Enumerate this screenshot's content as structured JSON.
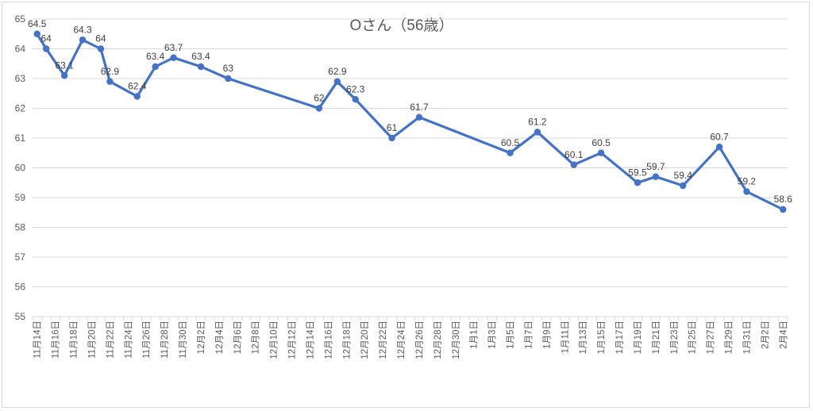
{
  "chart_data": {
    "type": "line",
    "title": "Oさん（56歳）",
    "xlabel": "",
    "ylabel": "",
    "ylim": [
      55,
      65
    ],
    "y_ticks": [
      55,
      56,
      57,
      58,
      59,
      60,
      61,
      62,
      63,
      64,
      65
    ],
    "grid": true,
    "legend": "none",
    "line_color": "#4472c4",
    "x_tick_labels": [
      "11月14日",
      "11月16日",
      "11月18日",
      "11月20日",
      "11月22日",
      "11月24日",
      "11月26日",
      "11月28日",
      "11月30日",
      "12月2日",
      "12月4日",
      "12月6日",
      "12月8日",
      "12月10日",
      "12月12日",
      "12月14日",
      "12月16日",
      "12月18日",
      "12月20日",
      "12月22日",
      "12月24日",
      "12月26日",
      "12月28日",
      "12月30日",
      "1月1日",
      "1月3日",
      "1月5日",
      "1月7日",
      "1月9日",
      "1月11日",
      "1月13日",
      "1月15日",
      "1月17日",
      "1月19日",
      "1月21日",
      "1月23日",
      "1月25日",
      "1月27日",
      "1月29日",
      "1月31日",
      "2月2日",
      "2月4日"
    ],
    "points": [
      {
        "x": "11月14日",
        "y": 64.5,
        "label": "64.5"
      },
      {
        "x": "11月15日",
        "y": 64,
        "label": "64"
      },
      {
        "x": "11月17日",
        "y": 63.1,
        "label": "63.1"
      },
      {
        "x": "11月19日",
        "y": 64.3,
        "label": "64.3"
      },
      {
        "x": "11月21日",
        "y": 64,
        "label": "64"
      },
      {
        "x": "11月22日",
        "y": 62.9,
        "label": "62.9"
      },
      {
        "x": "11月25日",
        "y": 62.4,
        "label": "62.4"
      },
      {
        "x": "11月27日",
        "y": 63.4,
        "label": "63.4"
      },
      {
        "x": "11月29日",
        "y": 63.7,
        "label": "63.7"
      },
      {
        "x": "12月2日",
        "y": 63.4,
        "label": "63.4"
      },
      {
        "x": "12月5日",
        "y": 63,
        "label": "63"
      },
      {
        "x": "12月15日",
        "y": 62,
        "label": "62"
      },
      {
        "x": "12月17日",
        "y": 62.9,
        "label": "62.9"
      },
      {
        "x": "12月19日",
        "y": 62.3,
        "label": "62.3"
      },
      {
        "x": "12月23日",
        "y": 61,
        "label": "61"
      },
      {
        "x": "12月26日",
        "y": 61.7,
        "label": "61.7"
      },
      {
        "x": "1月5日",
        "y": 60.5,
        "label": "60.5"
      },
      {
        "x": "1月8日",
        "y": 61.2,
        "label": "61.2"
      },
      {
        "x": "1月12日",
        "y": 60.1,
        "label": "60.1"
      },
      {
        "x": "1月15日",
        "y": 60.5,
        "label": "60.5"
      },
      {
        "x": "1月19日",
        "y": 59.5,
        "label": "59.5"
      },
      {
        "x": "1月21日",
        "y": 59.7,
        "label": "59.7"
      },
      {
        "x": "1月24日",
        "y": 59.4,
        "label": "59.4"
      },
      {
        "x": "1月28日",
        "y": 60.7,
        "label": "60.7"
      },
      {
        "x": "1月31日",
        "y": 59.2,
        "label": "59.2"
      },
      {
        "x": "2月4日",
        "y": 58.6,
        "label": "58.6"
      }
    ]
  }
}
